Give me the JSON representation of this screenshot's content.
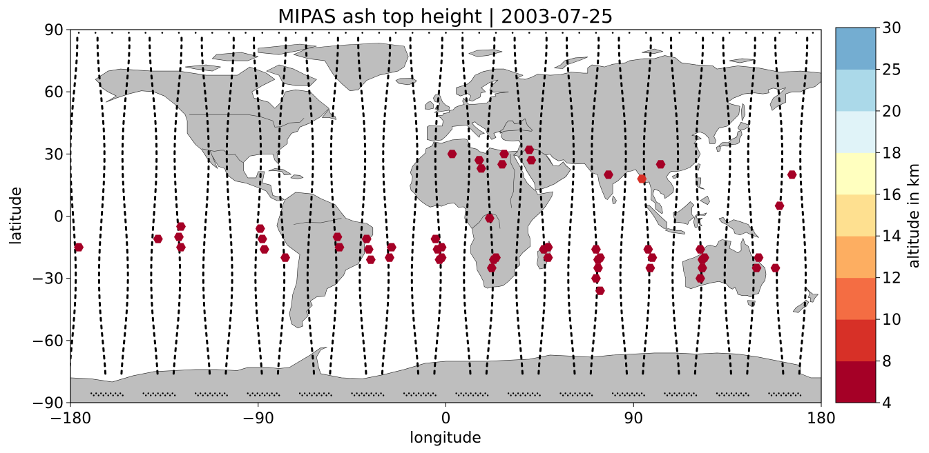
{
  "chart_data": {
    "type": "scatter",
    "title": "MIPAS ash top height | 2003-07-25",
    "xlabel": "longitude",
    "ylabel": "latitude",
    "xlim": [
      -180,
      180
    ],
    "ylim": [
      -90,
      90
    ],
    "xticks": [
      -180,
      -90,
      0,
      90,
      180
    ],
    "yticks": [
      90,
      60,
      30,
      0,
      -30,
      -60,
      -90
    ],
    "xtick_labels": [
      "−180",
      "−90",
      "0",
      "90",
      "180"
    ],
    "ytick_labels": [
      "90",
      "60",
      "30",
      "0",
      "−30",
      "−60",
      "−90"
    ],
    "colorbar": {
      "label": "altitude in km",
      "bounds": [
        4,
        8,
        10,
        12,
        14,
        16,
        18,
        20,
        25,
        30
      ],
      "tick_labels": [
        "4",
        "8",
        "10",
        "12",
        "14",
        "16",
        "18",
        "20",
        "25",
        "30"
      ],
      "colors": [
        "#a50026",
        "#d73027",
        "#f46d43",
        "#fdae61",
        "#fee090",
        "#ffffbf",
        "#e0f3f8",
        "#abd9e9",
        "#74add1",
        "#4575b4",
        "#313695"
      ]
    },
    "land_color": "#bebebe",
    "track_color": "#000000",
    "series": [
      {
        "marker": "hexagon",
        "points": [
          {
            "lon": -176,
            "lat": -15,
            "alt": 6
          },
          {
            "lon": -138,
            "lat": -11,
            "alt": 6
          },
          {
            "lon": -127,
            "lat": -5,
            "alt": 6
          },
          {
            "lon": -128,
            "lat": -10,
            "alt": 6
          },
          {
            "lon": -127,
            "lat": -15,
            "alt": 6
          },
          {
            "lon": -89,
            "lat": -6,
            "alt": 6
          },
          {
            "lon": -88,
            "lat": -11,
            "alt": 6
          },
          {
            "lon": -87,
            "lat": -16,
            "alt": 6
          },
          {
            "lon": -77,
            "lat": -20,
            "alt": 6
          },
          {
            "lon": -52,
            "lat": -10,
            "alt": 6
          },
          {
            "lon": -51,
            "lat": -15,
            "alt": 6
          },
          {
            "lon": -38,
            "lat": -11,
            "alt": 6
          },
          {
            "lon": -37,
            "lat": -16,
            "alt": 6
          },
          {
            "lon": -36,
            "lat": -21,
            "alt": 6
          },
          {
            "lon": -26,
            "lat": -15,
            "alt": 6
          },
          {
            "lon": -27,
            "lat": -20,
            "alt": 6
          },
          {
            "lon": -5,
            "lat": -11,
            "alt": 6
          },
          {
            "lon": -4,
            "lat": -16,
            "alt": 6
          },
          {
            "lon": -2,
            "lat": -15,
            "alt": 6
          },
          {
            "lon": -2,
            "lat": -20,
            "alt": 6
          },
          {
            "lon": -3,
            "lat": -21,
            "alt": 6
          },
          {
            "lon": 3,
            "lat": 30,
            "alt": 6
          },
          {
            "lon": 16,
            "lat": 27,
            "alt": 6
          },
          {
            "lon": 17,
            "lat": 23,
            "alt": 6
          },
          {
            "lon": 28,
            "lat": 30,
            "alt": 6
          },
          {
            "lon": 27,
            "lat": 25,
            "alt": 6
          },
          {
            "lon": 40,
            "lat": 32,
            "alt": 6
          },
          {
            "lon": 41,
            "lat": 27,
            "alt": 6
          },
          {
            "lon": 21,
            "lat": -1,
            "alt": 6
          },
          {
            "lon": 24,
            "lat": -20,
            "alt": 6
          },
          {
            "lon": 23,
            "lat": -21,
            "alt": 6
          },
          {
            "lon": 22,
            "lat": -25,
            "alt": 6
          },
          {
            "lon": 47,
            "lat": -16,
            "alt": 6
          },
          {
            "lon": 49,
            "lat": -15,
            "alt": 6
          },
          {
            "lon": 49,
            "lat": -20,
            "alt": 6
          },
          {
            "lon": 72,
            "lat": -16,
            "alt": 6
          },
          {
            "lon": 73,
            "lat": -21,
            "alt": 6
          },
          {
            "lon": 74,
            "lat": -20,
            "alt": 6
          },
          {
            "lon": 73,
            "lat": -25,
            "alt": 6
          },
          {
            "lon": 72,
            "lat": -30,
            "alt": 6
          },
          {
            "lon": 74,
            "lat": -36,
            "alt": 6
          },
          {
            "lon": 78,
            "lat": 20,
            "alt": 6
          },
          {
            "lon": 94,
            "lat": 18,
            "alt": 9
          },
          {
            "lon": 103,
            "lat": 25,
            "alt": 6
          },
          {
            "lon": 97,
            "lat": -16,
            "alt": 6
          },
          {
            "lon": 99,
            "lat": -20,
            "alt": 6
          },
          {
            "lon": 98,
            "lat": -25,
            "alt": 6
          },
          {
            "lon": 122,
            "lat": -16,
            "alt": 6
          },
          {
            "lon": 124,
            "lat": -20,
            "alt": 6
          },
          {
            "lon": 123,
            "lat": -21,
            "alt": 6
          },
          {
            "lon": 123,
            "lat": -25,
            "alt": 6
          },
          {
            "lon": 122,
            "lat": -30,
            "alt": 6
          },
          {
            "lon": 150,
            "lat": -20,
            "alt": 6
          },
          {
            "lon": 149,
            "lat": -25,
            "alt": 6
          },
          {
            "lon": 158,
            "lat": -25,
            "alt": 6
          },
          {
            "lon": 160,
            "lat": 5,
            "alt": 6
          },
          {
            "lon": 166,
            "lat": 20,
            "alt": 6
          }
        ]
      }
    ]
  }
}
